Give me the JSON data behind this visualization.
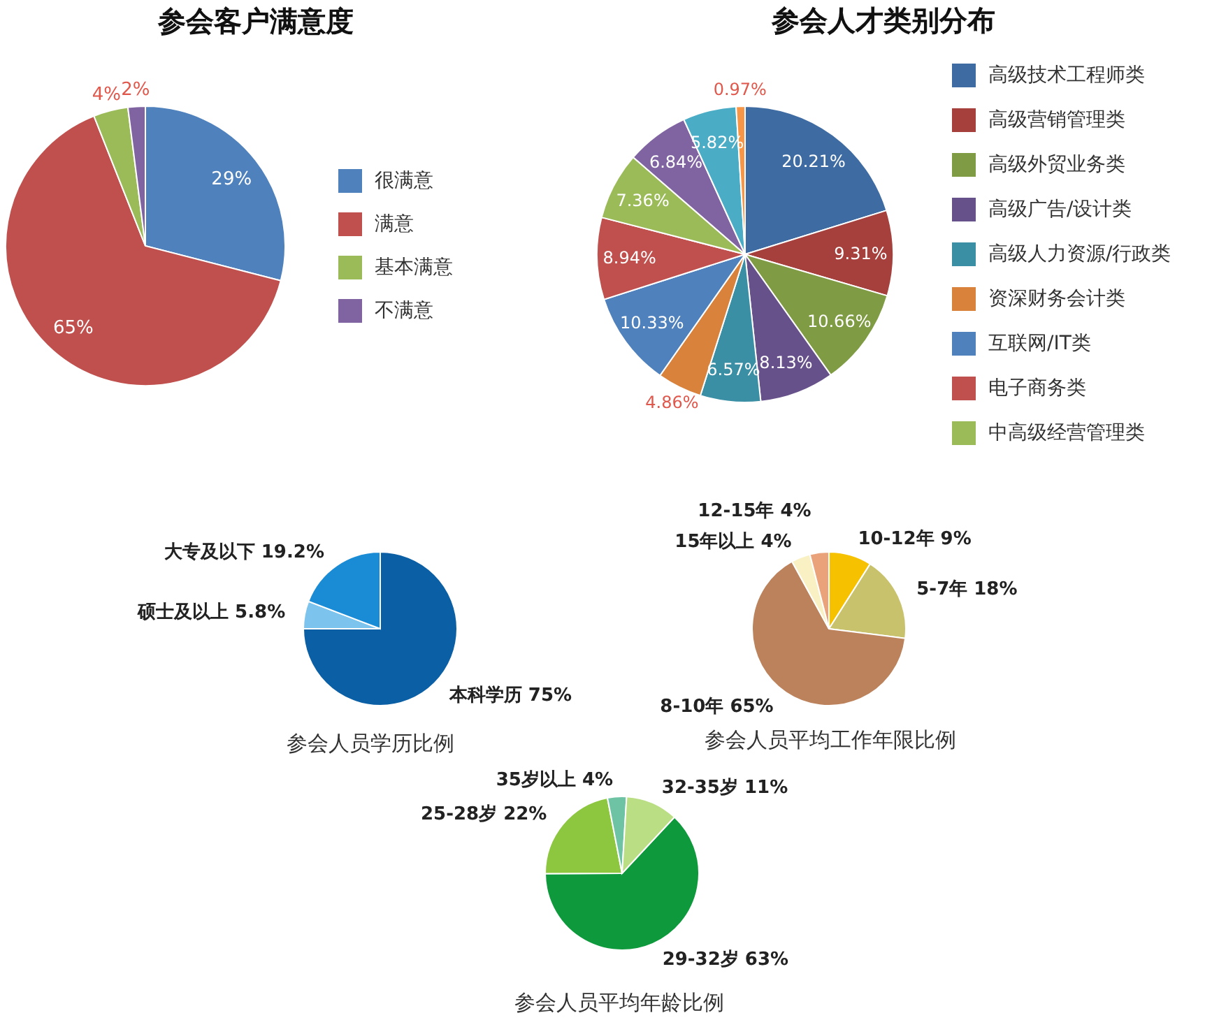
{
  "chart_data": [
    {
      "type": "pie",
      "title": "参会客户满意度",
      "categories": [
        "很满意",
        "满意",
        "基本满意",
        "不满意"
      ],
      "values": [
        29,
        65,
        4,
        2
      ],
      "value_labels": [
        "29%",
        "65%",
        "4%",
        "2%"
      ],
      "colors": [
        "#4f81bd",
        "#c0504d",
        "#9bbb59",
        "#8064a2"
      ],
      "legend": "right"
    },
    {
      "type": "pie",
      "title": "参会人才类别分布",
      "categories": [
        "高级技术工程师类",
        "高级营销管理类",
        "高级外贸业务类",
        "高级广告/设计类",
        "高级人力资源/行政类",
        "资深财务会计类",
        "互联网/IT类",
        "电子商务类",
        "中高级经营管理类",
        null,
        null,
        null
      ],
      "values": [
        20.21,
        9.31,
        10.66,
        8.13,
        6.57,
        4.86,
        10.33,
        8.94,
        7.36,
        6.84,
        5.82,
        0.97
      ],
      "value_labels": [
        "20.21%",
        "9.31%",
        "10.66%",
        "8.13%",
        "6.57%",
        "4.86%",
        "10.33%",
        "8.94%",
        "7.36%",
        "6.84%",
        "5.82%",
        "0.97%"
      ],
      "colors": [
        "#3e6ba1",
        "#a5403d",
        "#7f9b43",
        "#67518a",
        "#3b8fa5",
        "#d8823c",
        "#4f81bd",
        "#c0504d",
        "#9bbb59",
        "#8064a2",
        "#4bacc6",
        "#f79646"
      ],
      "legend": "right"
    },
    {
      "type": "pie",
      "title": "参会人员学历比例",
      "categories": [
        "本科学历",
        "硕士及以上",
        "大专及以下"
      ],
      "values": [
        75,
        5.8,
        19.2
      ],
      "value_labels": [
        "75%",
        "5.8%",
        "19.2%"
      ],
      "colors": [
        "#0b5fa5",
        "#7cc3ee",
        "#1a8cd6"
      ]
    },
    {
      "type": "pie",
      "title": "参会人员平均工作年限比例",
      "categories": [
        "10-12年",
        "5-7年",
        "8-10年",
        "15年以上",
        "12-15年"
      ],
      "values": [
        9,
        18,
        65,
        4,
        4
      ],
      "value_labels": [
        "9%",
        "18%",
        "65%",
        "4%",
        "4%"
      ],
      "colors": [
        "#f6c200",
        "#c9c26c",
        "#bb825c",
        "#f9f1c3",
        "#eaa27a"
      ]
    },
    {
      "type": "pie",
      "title": "参会人员平均年龄比例",
      "categories": [
        "29-32岁",
        "25-28岁",
        "35岁以上",
        "32-35岁"
      ],
      "values": [
        63,
        22,
        4,
        11
      ],
      "value_labels": [
        "63%",
        "22%",
        "4%",
        "11%"
      ],
      "colors": [
        "#0e9a3c",
        "#8dc63f",
        "#6dc3a3",
        "#bade84"
      ]
    }
  ]
}
